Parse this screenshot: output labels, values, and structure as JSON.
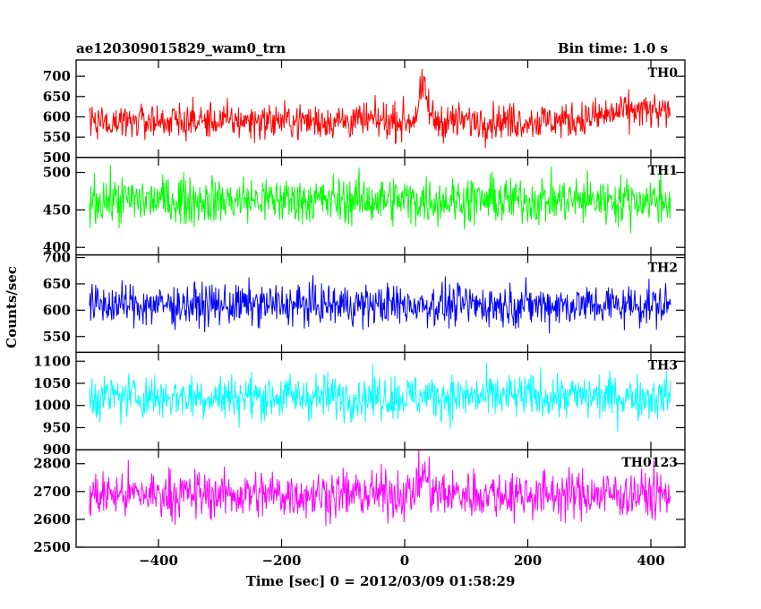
{
  "header": {
    "title": "ae120309015829_wam0_trn",
    "bin_time": "Bin time: 1.0 s"
  },
  "chart_data": {
    "type": "line",
    "title": "ae120309015829_wam0_trn",
    "subtitle": "Bin time: 1.0 s",
    "xlabel": "Time [sec] 0 = 2012/03/09 01:58:29",
    "ylabel": "Counts/sec",
    "xlim": [
      -512,
      432
    ],
    "x_ticks": [
      -400,
      -200,
      0,
      200,
      400
    ],
    "x_tick_labels": [
      "−400",
      "−200",
      "0",
      "200",
      "400"
    ],
    "x_step": 1,
    "grid": false,
    "series": [
      {
        "name": "TH0",
        "color": "#ff0000",
        "ylim": [
          500,
          740
        ],
        "y_ticks": [
          500,
          550,
          600,
          650,
          700
        ],
        "y_tick_labels": [
          "500",
          "550",
          "600",
          "650",
          "700"
        ],
        "baseline": 590,
        "noise": 28,
        "features": [
          {
            "center": 30,
            "width": 10,
            "amp": 75
          },
          {
            "center": 380,
            "width": 70,
            "amp": 25
          }
        ]
      },
      {
        "name": "TH1",
        "color": "#00ff00",
        "ylim": [
          390,
          520
        ],
        "y_ticks": [
          400,
          450,
          500
        ],
        "y_tick_labels": [
          "400",
          "450",
          "500"
        ],
        "baseline": 463,
        "noise": 20,
        "features": []
      },
      {
        "name": "TH2",
        "color": "#0000ff",
        "ylim": [
          520,
          705
        ],
        "y_ticks": [
          550,
          600,
          650,
          700
        ],
        "y_tick_labels": [
          "550",
          "600",
          "650",
          "700"
        ],
        "baseline": 610,
        "noise": 25,
        "features": []
      },
      {
        "name": "TH3",
        "color": "#00ffff",
        "ylim": [
          900,
          1120
        ],
        "y_ticks": [
          900,
          950,
          1000,
          1050,
          1100
        ],
        "y_tick_labels": [
          "900",
          "950",
          "1000",
          "1050",
          "1100"
        ],
        "baseline": 1020,
        "noise": 32,
        "features": []
      },
      {
        "name": "TH0123",
        "color": "#ff00ff",
        "ylim": [
          2500,
          2850
        ],
        "y_ticks": [
          2500,
          2600,
          2700,
          2800
        ],
        "y_tick_labels": [
          "2500",
          "2600",
          "2700",
          "2800"
        ],
        "baseline": 2690,
        "noise": 55,
        "features": [
          {
            "center": 30,
            "width": 10,
            "amp": 75
          }
        ]
      }
    ]
  }
}
